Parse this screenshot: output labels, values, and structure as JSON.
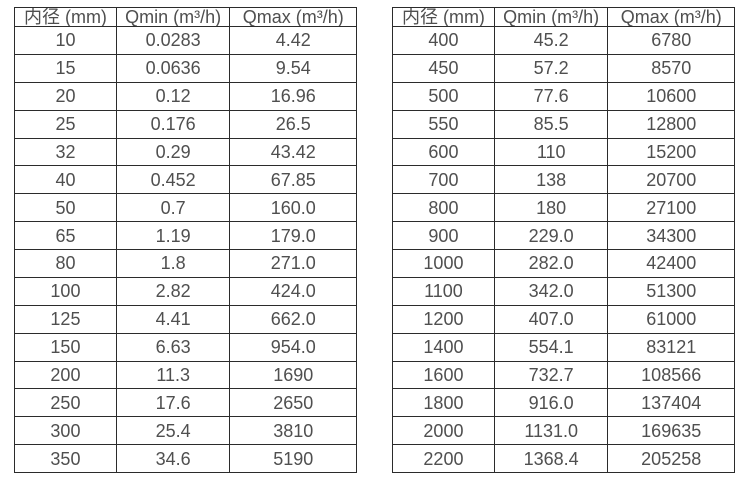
{
  "colors": {
    "background": "#ffffff",
    "table_border": "#2b2b2b",
    "table_text": "#4f4f4f"
  },
  "tables": [
    {
      "name": "flow-range-table-small-diameters",
      "headers": [
        "内径 (mm)",
        "Qmin (m³/h)",
        "Qmax (m³/h)"
      ],
      "rows": [
        [
          "10",
          "0.0283",
          "4.42"
        ],
        [
          "15",
          "0.0636",
          "9.54"
        ],
        [
          "20",
          "0.12",
          "16.96"
        ],
        [
          "25",
          "0.176",
          "26.5"
        ],
        [
          "32",
          "0.29",
          "43.42"
        ],
        [
          "40",
          "0.452",
          "67.85"
        ],
        [
          "50",
          "0.7",
          "160.0"
        ],
        [
          "65",
          "1.19",
          "179.0"
        ],
        [
          "80",
          "1.8",
          "271.0"
        ],
        [
          "100",
          "2.82",
          "424.0"
        ],
        [
          "125",
          "4.41",
          "662.0"
        ],
        [
          "150",
          "6.63",
          "954.0"
        ],
        [
          "200",
          "11.3",
          "1690"
        ],
        [
          "250",
          "17.6",
          "2650"
        ],
        [
          "300",
          "25.4",
          "3810"
        ],
        [
          "350",
          "34.6",
          "5190"
        ]
      ]
    },
    {
      "name": "flow-range-table-large-diameters",
      "headers": [
        "内径 (mm)",
        "Qmin (m³/h)",
        "Qmax (m³/h)"
      ],
      "rows": [
        [
          "400",
          "45.2",
          "6780"
        ],
        [
          "450",
          "57.2",
          "8570"
        ],
        [
          "500",
          "77.6",
          "10600"
        ],
        [
          "550",
          "85.5",
          "12800"
        ],
        [
          "600",
          "110",
          "15200"
        ],
        [
          "700",
          "138",
          "20700"
        ],
        [
          "800",
          "180",
          "27100"
        ],
        [
          "900",
          "229.0",
          "34300"
        ],
        [
          "1000",
          "282.0",
          "42400"
        ],
        [
          "1100",
          "342.0",
          "51300"
        ],
        [
          "1200",
          "407.0",
          "61000"
        ],
        [
          "1400",
          "554.1",
          "83121"
        ],
        [
          "1600",
          "732.7",
          "108566"
        ],
        [
          "1800",
          "916.0",
          "137404"
        ],
        [
          "2000",
          "1131.0",
          "169635"
        ],
        [
          "2200",
          "1368.4",
          "205258"
        ]
      ]
    }
  ]
}
